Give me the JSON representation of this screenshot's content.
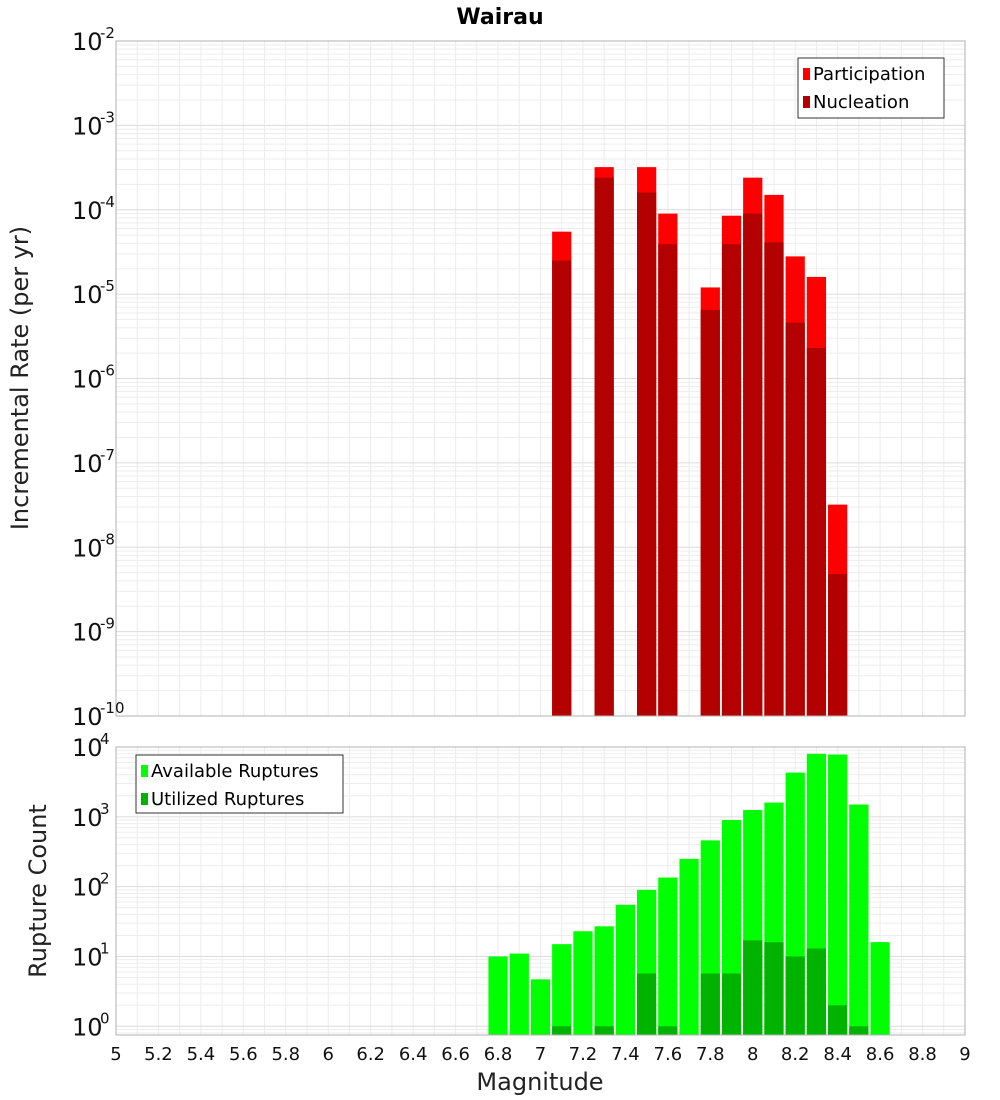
{
  "chart_data": [
    {
      "type": "bar",
      "title": "Wairau",
      "xlabel": "Magnitude",
      "ylabel": "Incremental Rate (per yr)",
      "y_scale": "log",
      "xlim": [
        5,
        9
      ],
      "ylim": [
        1e-10,
        0.01
      ],
      "grid": true,
      "legend_position": "top-right",
      "overlay": true,
      "x": [
        7.1,
        7.3,
        7.5,
        7.6,
        7.8,
        7.9,
        8.0,
        8.1,
        8.2,
        8.3,
        8.4
      ],
      "series": [
        {
          "name": "Participation",
          "color": "#ff0000",
          "values": [
            5.5e-05,
            0.00032,
            0.00032,
            9e-05,
            1.2e-05,
            8.5e-05,
            0.00024,
            0.00015,
            2.8e-05,
            1.6e-05,
            3.2e-08
          ]
        },
        {
          "name": "Nucleation",
          "color": "#b30000",
          "values": [
            2.5e-05,
            0.00024,
            0.00016,
            3.9e-05,
            6.5e-06,
            3.9e-05,
            9e-05,
            4.1e-05,
            4.6e-06,
            2.3e-06,
            4.8e-09
          ]
        }
      ]
    },
    {
      "type": "bar",
      "title": "",
      "xlabel": "Magnitude",
      "ylabel": "Rupture Count",
      "y_scale": "log",
      "xlim": [
        5,
        9
      ],
      "ylim": [
        0.75,
        10000
      ],
      "grid": true,
      "legend_position": "top-left",
      "overlay": true,
      "x": [
        6.8,
        6.9,
        7.0,
        7.1,
        7.2,
        7.3,
        7.4,
        7.5,
        7.6,
        7.7,
        7.8,
        7.9,
        8.0,
        8.1,
        8.2,
        8.3,
        8.4,
        8.5,
        8.6
      ],
      "series": [
        {
          "name": "Available Ruptures",
          "color": "#00ff00",
          "values": [
            10,
            11,
            4.7,
            15,
            23,
            27,
            55,
            90,
            135,
            250,
            460,
            900,
            1250,
            1600,
            4300,
            8000,
            7800,
            1500,
            16
          ]
        },
        {
          "name": "Utilized Ruptures",
          "color": "#00b300",
          "values": [
            null,
            null,
            null,
            1,
            null,
            1,
            null,
            5.7,
            1,
            null,
            5.7,
            5.7,
            17,
            16,
            10,
            13,
            2,
            1,
            null
          ]
        }
      ]
    }
  ],
  "x_ticks": [
    "5",
    "5.2",
    "5.4",
    "5.6",
    "5.8",
    "6",
    "6.2",
    "6.4",
    "6.6",
    "6.8",
    "7",
    "7.2",
    "7.4",
    "7.6",
    "7.8",
    "8",
    "8.2",
    "8.4",
    "8.6",
    "8.8",
    "9"
  ],
  "top_y_ticks": [
    {
      "base": "10",
      "exp": "-2"
    },
    {
      "base": "10",
      "exp": "-3"
    },
    {
      "base": "10",
      "exp": "-4"
    },
    {
      "base": "10",
      "exp": "-5"
    },
    {
      "base": "10",
      "exp": "-6"
    },
    {
      "base": "10",
      "exp": "-7"
    },
    {
      "base": "10",
      "exp": "-8"
    },
    {
      "base": "10",
      "exp": "-9"
    },
    {
      "base": "10",
      "exp": "-10"
    }
  ],
  "bottom_y_ticks": [
    {
      "base": "10",
      "exp": "4"
    },
    {
      "base": "10",
      "exp": "3"
    },
    {
      "base": "10",
      "exp": "2"
    },
    {
      "base": "10",
      "exp": "1"
    },
    {
      "base": "10",
      "exp": "0"
    }
  ]
}
